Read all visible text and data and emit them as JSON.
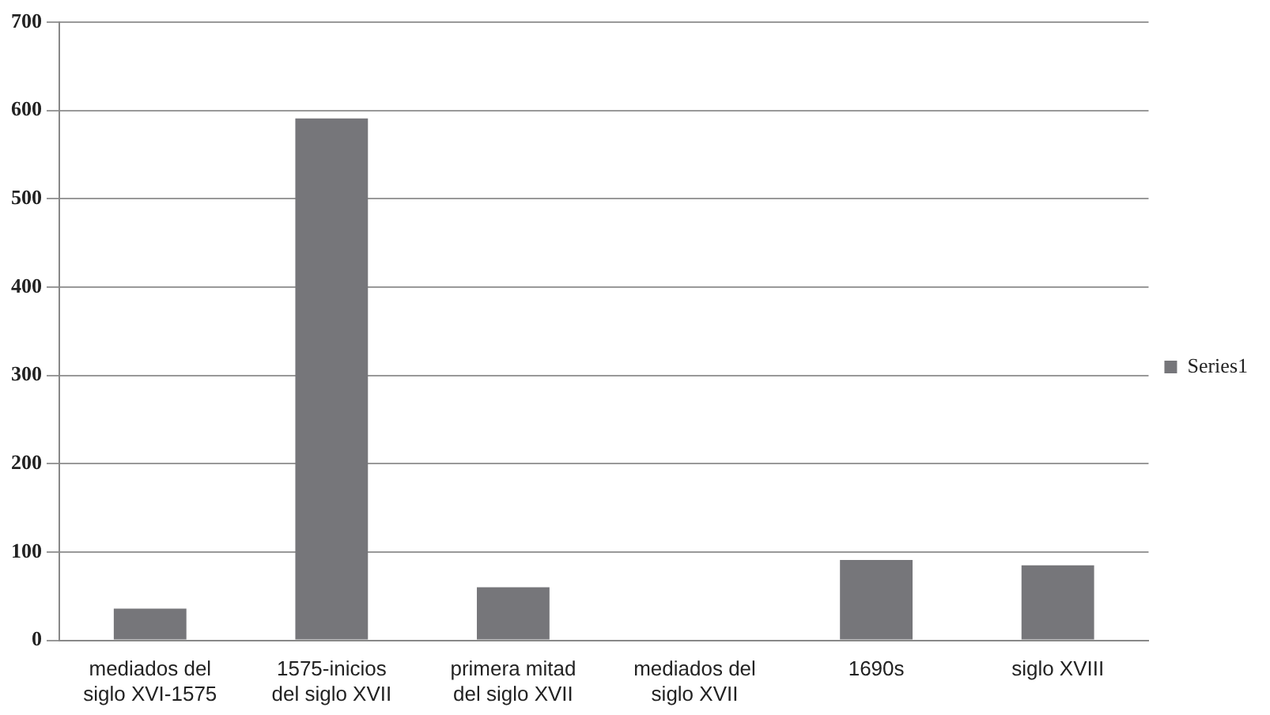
{
  "chart_data": {
    "type": "bar",
    "categories": [
      "mediados del siglo XVI-1575",
      "1575-inicios del siglo XVII",
      "primera mitad del siglo XVII",
      "mediados del siglo XVII",
      "1690s",
      "siglo XVIII"
    ],
    "series": [
      {
        "name": "Series1",
        "color": "#76767a",
        "values": [
          36,
          591,
          60,
          0,
          91,
          85
        ]
      }
    ],
    "ylim": [
      0,
      700
    ],
    "yticks": [
      0,
      100,
      200,
      300,
      400,
      500,
      600,
      700
    ],
    "grid": "y",
    "legend": "right"
  }
}
